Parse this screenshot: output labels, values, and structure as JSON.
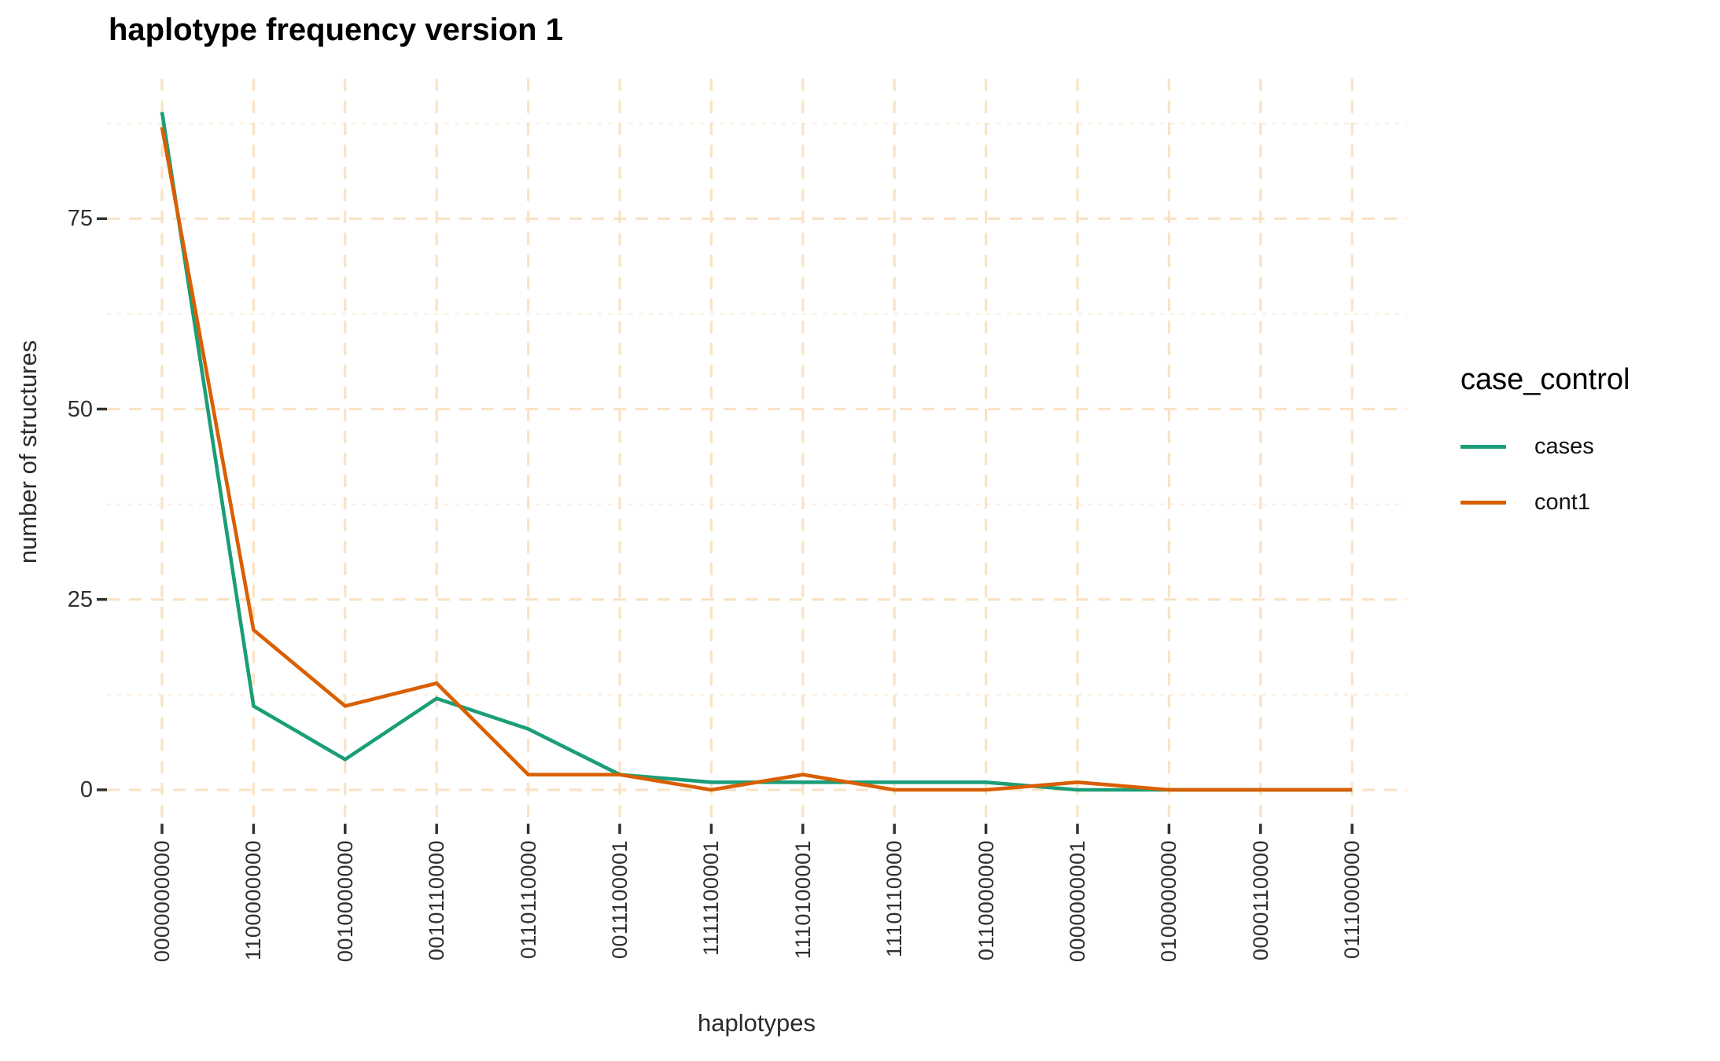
{
  "chart_data": {
    "type": "line",
    "title": "haplotype frequency version 1",
    "xlabel": "haplotypes",
    "ylabel": "number of structures",
    "categories": [
      "0000000000",
      "1100000000",
      "0010000000",
      "0010110000",
      "0110110000",
      "0011100001",
      "1111100001",
      "1110100001",
      "1110110000",
      "0110000000",
      "0000000001",
      "0100000000",
      "0000110000",
      "0111000000"
    ],
    "series": [
      {
        "name": "cases",
        "color": "#1B9E77",
        "values": [
          89,
          11,
          4,
          12,
          8,
          2,
          1,
          1,
          1,
          1,
          0,
          0,
          0,
          0
        ]
      },
      {
        "name": "cont1",
        "color": "#D95F02",
        "values": [
          87,
          21,
          11,
          14,
          2,
          2,
          0,
          2,
          0,
          0,
          1,
          0,
          0,
          0
        ]
      }
    ],
    "yticks": [
      0,
      25,
      50,
      75
    ],
    "yminor": [
      12.5,
      37.5,
      62.5,
      87.5
    ],
    "ylim": [
      -4.5,
      93.5
    ],
    "legend_title": "case_control",
    "legend_position": "right",
    "grid": {
      "style": "dashed",
      "major_color": "#F9E3C5",
      "minor_color": "#FCEEDD"
    },
    "tick_color": "#333333",
    "background": "#FFFFFF"
  }
}
